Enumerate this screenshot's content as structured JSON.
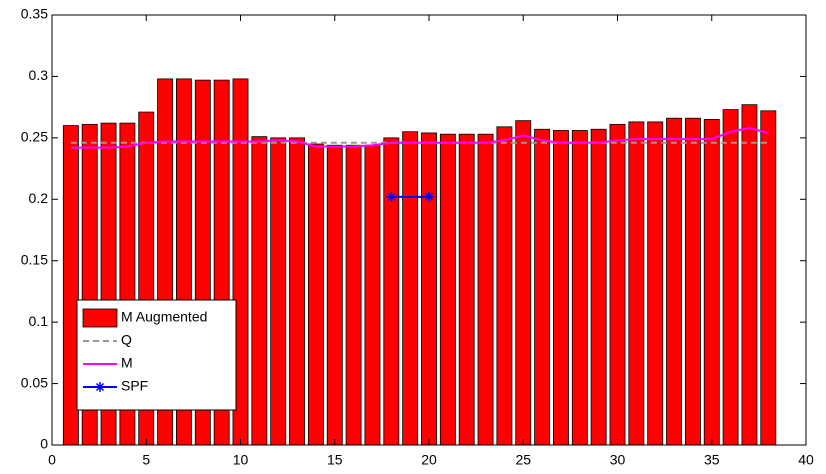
{
  "chart_data": {
    "type": "bar",
    "x": [
      1,
      2,
      3,
      4,
      5,
      6,
      7,
      8,
      9,
      10,
      11,
      12,
      13,
      14,
      15,
      16,
      17,
      18,
      19,
      20,
      21,
      22,
      23,
      24,
      25,
      26,
      27,
      28,
      29,
      30,
      31,
      32,
      33,
      34,
      35,
      36,
      37,
      38
    ],
    "series": [
      {
        "name": "M Augmented",
        "type": "bar",
        "color": "#ff0000",
        "values": [
          0.26,
          0.261,
          0.262,
          0.262,
          0.271,
          0.298,
          0.298,
          0.297,
          0.297,
          0.298,
          0.251,
          0.25,
          0.25,
          0.245,
          0.244,
          0.244,
          0.244,
          0.25,
          0.255,
          0.254,
          0.253,
          0.253,
          0.253,
          0.259,
          0.264,
          0.257,
          0.256,
          0.256,
          0.257,
          0.261,
          0.263,
          0.263,
          0.266,
          0.266,
          0.265,
          0.273,
          0.277,
          0.272
        ]
      },
      {
        "name": "Q",
        "type": "line",
        "color": "#999999",
        "linestyle": "dashed",
        "values": [
          0.246,
          0.246,
          0.246,
          0.246,
          0.246,
          0.246,
          0.246,
          0.246,
          0.246,
          0.246,
          0.246,
          0.246,
          0.246,
          0.246,
          0.246,
          0.246,
          0.246,
          0.246,
          0.246,
          0.246,
          0.246,
          0.246,
          0.246,
          0.246,
          0.246,
          0.246,
          0.246,
          0.246,
          0.246,
          0.246,
          0.246,
          0.246,
          0.246,
          0.246,
          0.246,
          0.246,
          0.246,
          0.246
        ]
      },
      {
        "name": "M",
        "type": "line",
        "color": "#ff00ff",
        "linestyle": "solid",
        "values": [
          0.242,
          0.242,
          0.242,
          0.243,
          0.246,
          0.247,
          0.247,
          0.247,
          0.247,
          0.247,
          0.247,
          0.248,
          0.247,
          0.243,
          0.243,
          0.243,
          0.244,
          0.246,
          0.246,
          0.246,
          0.246,
          0.246,
          0.246,
          0.248,
          0.252,
          0.248,
          0.246,
          0.246,
          0.246,
          0.248,
          0.249,
          0.249,
          0.249,
          0.249,
          0.249,
          0.255,
          0.258,
          0.254
        ]
      },
      {
        "name": "SPF",
        "type": "line",
        "color": "#0000ff",
        "linestyle": "solid",
        "marker": "*",
        "x": [
          18,
          20
        ],
        "values": [
          0.202,
          0.202
        ]
      }
    ],
    "xlim": [
      0,
      40
    ],
    "xticks": [
      0,
      5,
      10,
      15,
      20,
      25,
      30,
      35,
      40
    ],
    "ylim": [
      0,
      0.35
    ],
    "yticks": [
      0,
      0.05,
      0.1,
      0.15,
      0.2,
      0.25,
      0.3,
      0.35
    ],
    "legend": "lower left"
  }
}
